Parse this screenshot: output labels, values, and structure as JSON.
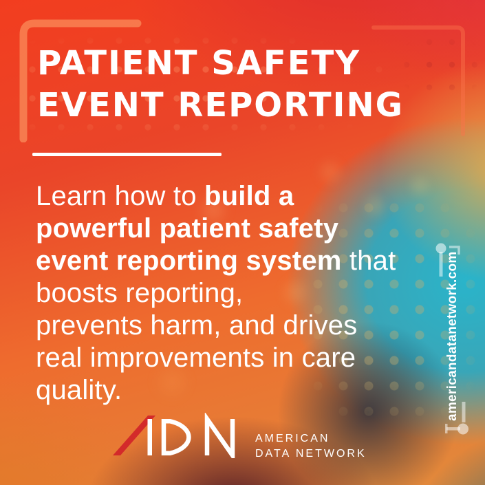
{
  "title": {
    "text": "PATIENT SAFETY\nEVENT REPORTING"
  },
  "body": {
    "segments": [
      {
        "text": "Learn how to ",
        "bold": false
      },
      {
        "text": "build a\npowerful patient safety\nevent reporting system",
        "bold": true
      },
      {
        "text": " that boosts reporting,\nprevents harm, and drives\nreal improvements in care\nquality.",
        "bold": false
      }
    ]
  },
  "logo": {
    "abbr": "ADN",
    "name_line1": "AMERICAN",
    "name_line2": "DATA NETWORK"
  },
  "website": {
    "url": "americandatanetwork.com"
  },
  "decorations": {
    "top_left_bracket": "rounded corner bracket",
    "top_right_bracket": "thin corner bracket outline",
    "url_connector_top": "node circle with stem and corner line",
    "url_connector_bottom": "elbow connector with node circle",
    "dot_grids": "faded dotted grids over gradient"
  },
  "colors": {
    "background_red": "#ee4125",
    "background_orange": "#ec7430",
    "background_gold": "#e2a94e",
    "background_teal": "#28b0c6",
    "background_deep_blue": "#0f6f94",
    "background_maroon": "#4a1626",
    "text_white": "#ffffff",
    "logo_red": "#d32a2a"
  }
}
